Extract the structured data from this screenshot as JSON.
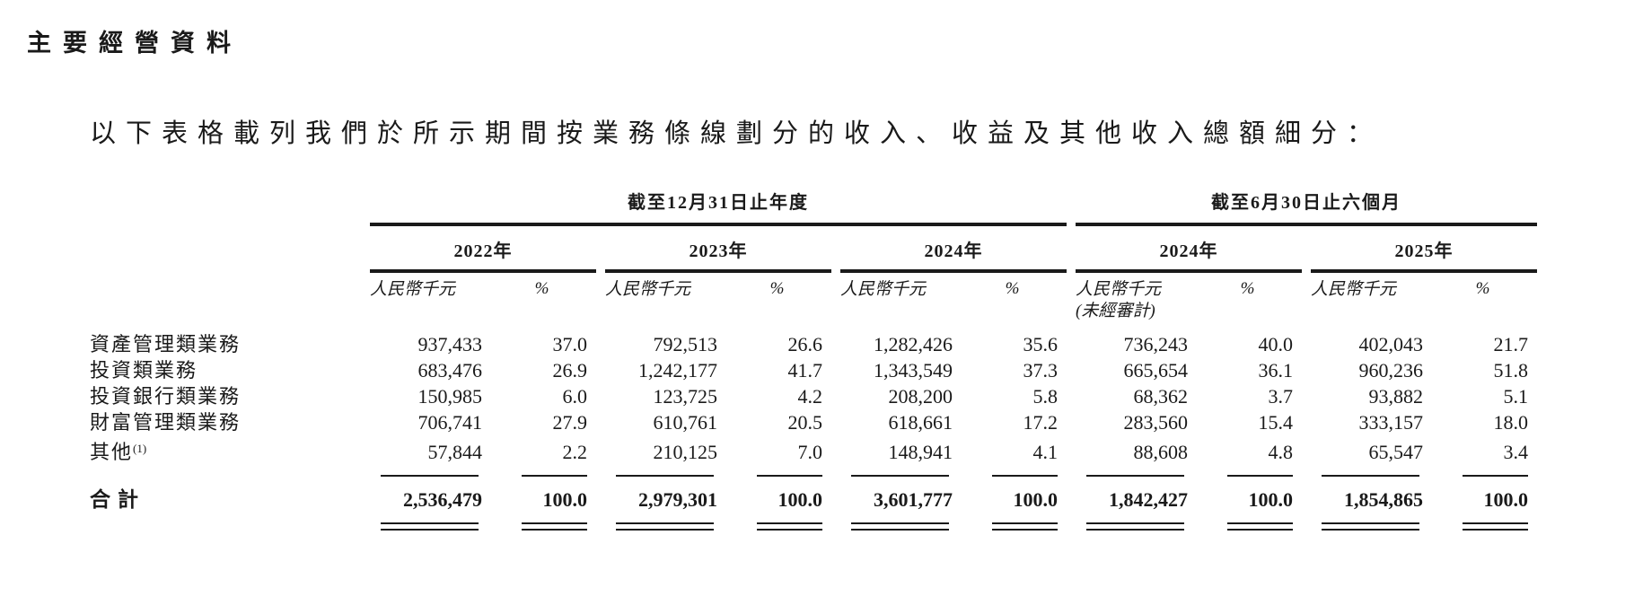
{
  "page": {
    "title": "主要經營資料",
    "intro": "以下表格載列我們於所示期間按業務條線劃分的收入、收益及其他收入總額細分："
  },
  "colors": {
    "text": "#1a1a1a",
    "rule": "#1a1a1a",
    "background": "#ffffff"
  },
  "table": {
    "group_headers": [
      {
        "label": "截至12月31日止年度"
      },
      {
        "label": "截至6月30日止六個月"
      }
    ],
    "year_headers": [
      "2022年",
      "2023年",
      "2024年",
      "2024年",
      "2025年"
    ],
    "unit_label": "人民幣千元",
    "pct_label": "%",
    "unaudited_note": "(未經審計)",
    "rows": [
      {
        "label": "資產管理類業務",
        "values": [
          "937,433",
          "37.0",
          "792,513",
          "26.6",
          "1,282,426",
          "35.6",
          "736,243",
          "40.0",
          "402,043",
          "21.7"
        ]
      },
      {
        "label": "投資類業務",
        "values": [
          "683,476",
          "26.9",
          "1,242,177",
          "41.7",
          "1,343,549",
          "37.3",
          "665,654",
          "36.1",
          "960,236",
          "51.8"
        ]
      },
      {
        "label": "投資銀行類業務",
        "values": [
          "150,985",
          "6.0",
          "123,725",
          "4.2",
          "208,200",
          "5.8",
          "68,362",
          "3.7",
          "93,882",
          "5.1"
        ]
      },
      {
        "label": "財富管理類業務",
        "values": [
          "706,741",
          "27.9",
          "610,761",
          "20.5",
          "618,661",
          "17.2",
          "283,560",
          "15.4",
          "333,157",
          "18.0"
        ]
      },
      {
        "label": "其他",
        "note_ref": "(1)",
        "values": [
          "57,844",
          "2.2",
          "210,125",
          "7.0",
          "148,941",
          "4.1",
          "88,608",
          "4.8",
          "65,547",
          "3.4"
        ]
      }
    ],
    "total": {
      "label": "合計",
      "values": [
        "2,536,479",
        "100.0",
        "2,979,301",
        "100.0",
        "3,601,777",
        "100.0",
        "1,842,427",
        "100.0",
        "1,854,865",
        "100.0"
      ]
    }
  }
}
